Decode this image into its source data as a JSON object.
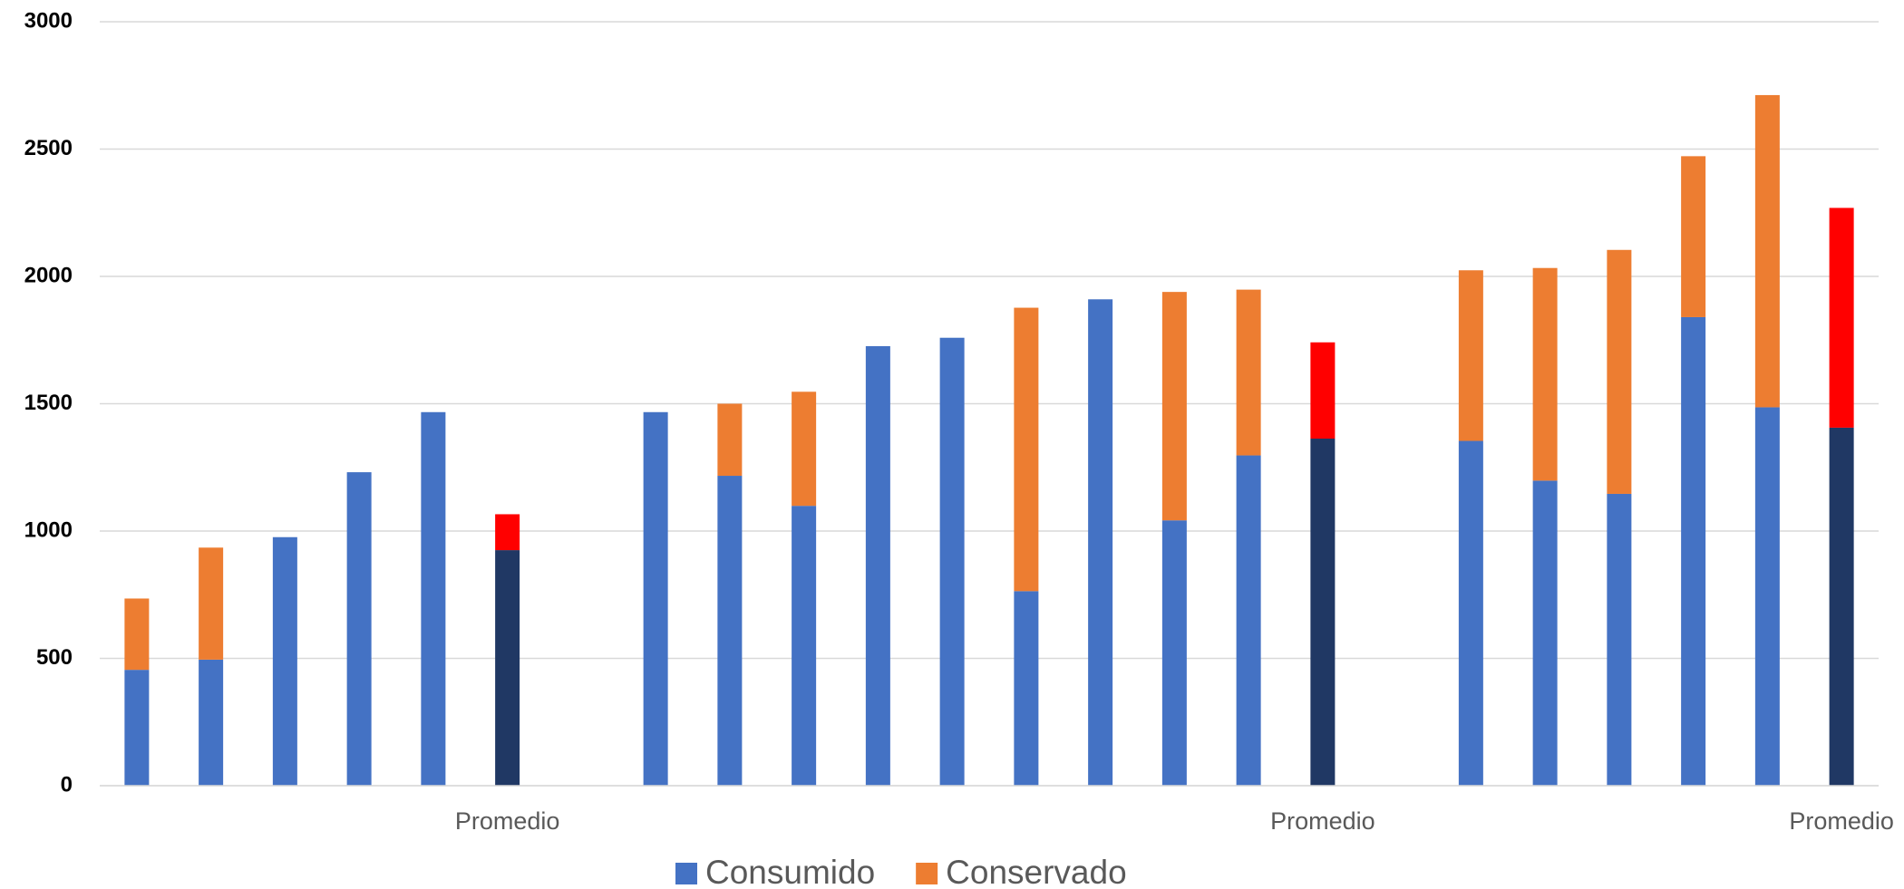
{
  "chart_data": {
    "type": "stacked_bar",
    "categories": [
      null,
      null,
      null,
      null,
      null,
      "Promedio",
      null,
      null,
      null,
      null,
      null,
      null,
      null,
      null,
      null,
      null,
      "Promedio",
      null,
      null,
      null,
      null,
      null,
      null,
      "Promedio"
    ],
    "series": [
      {
        "name": "Consumido",
        "color": "#4472c4",
        "highlight_color": "#203864",
        "values": [
          455,
          495,
          976,
          1231,
          1467,
          925,
          null,
          1467,
          1217,
          1099,
          1726,
          1759,
          764,
          1910,
          1042,
          1297,
          1363,
          null,
          1354,
          1198,
          1146,
          1840,
          1486,
          1406
        ]
      },
      {
        "name": "Conservado",
        "color": "#ed7d31",
        "highlight_color": "#ff0000",
        "values": [
          280,
          440,
          null,
          null,
          null,
          141,
          null,
          null,
          283,
          448,
          null,
          null,
          1113,
          null,
          897,
          651,
          378,
          null,
          670,
          835,
          958,
          632,
          1226,
          863
        ]
      }
    ],
    "ylim": [
      0,
      3000
    ],
    "yticks": [
      0,
      500,
      1000,
      1500,
      2000,
      2500,
      3000
    ],
    "grid": true,
    "legend": "bottom"
  }
}
